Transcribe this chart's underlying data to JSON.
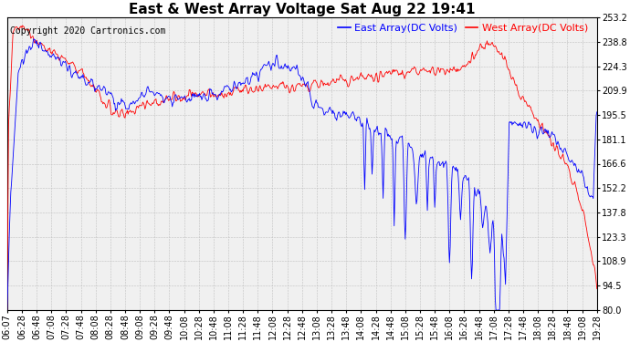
{
  "title": "East & West Array Voltage Sat Aug 22 19:41",
  "copyright": "Copyright 2020 Cartronics.com",
  "legend_east": "East Array(DC Volts)",
  "legend_west": "West Array(DC Volts)",
  "east_color": "blue",
  "west_color": "red",
  "bg_color": "#ffffff",
  "plot_bg_color": "#f0f0f0",
  "grid_color": "#c0c0c0",
  "yticks": [
    80.0,
    94.5,
    108.9,
    123.3,
    137.8,
    152.2,
    166.6,
    181.1,
    195.5,
    209.9,
    224.3,
    238.8,
    253.2
  ],
  "ymin": 80.0,
  "ymax": 253.2,
  "x_labels": [
    "06:07",
    "06:28",
    "06:48",
    "07:08",
    "07:28",
    "07:48",
    "08:08",
    "08:28",
    "08:48",
    "09:08",
    "09:28",
    "09:48",
    "10:08",
    "10:28",
    "10:48",
    "11:08",
    "11:28",
    "11:48",
    "12:08",
    "12:28",
    "12:48",
    "13:08",
    "13:28",
    "13:48",
    "14:08",
    "14:28",
    "14:48",
    "15:08",
    "15:28",
    "15:48",
    "16:08",
    "16:28",
    "16:48",
    "17:08",
    "17:28",
    "17:48",
    "18:08",
    "18:28",
    "18:48",
    "19:08",
    "19:28"
  ],
  "title_fontsize": 11,
  "copyright_fontsize": 7,
  "legend_fontsize": 8,
  "tick_fontsize": 7,
  "linewidth": 0.6
}
